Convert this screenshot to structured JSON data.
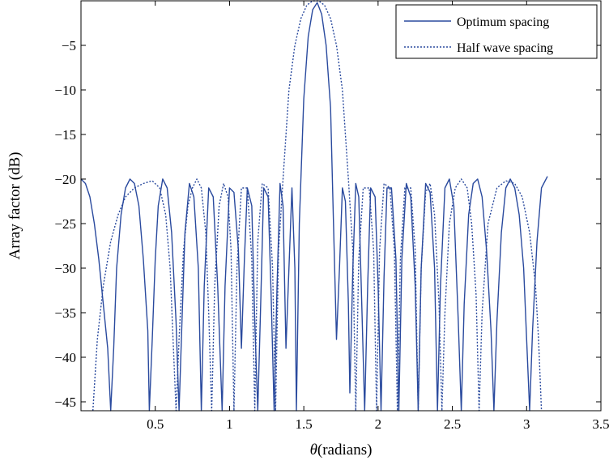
{
  "chart_data": {
    "type": "line",
    "title": "",
    "xlabel": "θ (radians)",
    "xlabel_symbol": "θ",
    "xlabel_unit": "(radians)",
    "ylabel": "Array factor (dB)",
    "xlim": [
      0,
      3.5
    ],
    "ylim": [
      -46,
      0
    ],
    "xticks": [
      0.5,
      1,
      1.5,
      2,
      2.5,
      3,
      3.5
    ],
    "xtick_labels": [
      "0.5",
      "1",
      "1.5",
      "2",
      "2.5",
      "3",
      "3.5"
    ],
    "yticks": [
      -5,
      -10,
      -15,
      -20,
      -25,
      -30,
      -35,
      -40,
      -45
    ],
    "ytick_labels": [
      "−5",
      "−10",
      "−15",
      "−20",
      "−25",
      "−30",
      "−35",
      "−40",
      "−45"
    ],
    "grid": false,
    "legend_position": "top-right",
    "colors": {
      "series": "#2a4a9e",
      "axes": "#000000"
    },
    "series": [
      {
        "name": "Optimum spacing",
        "style": "solid",
        "points": [
          [
            0,
            -20
          ],
          [
            0.03,
            -20.5
          ],
          [
            0.06,
            -22
          ],
          [
            0.09,
            -25
          ],
          [
            0.12,
            -29
          ],
          [
            0.15,
            -34
          ],
          [
            0.18,
            -39
          ],
          [
            0.2,
            -46
          ],
          [
            0.22,
            -39
          ],
          [
            0.24,
            -30
          ],
          [
            0.27,
            -24
          ],
          [
            0.3,
            -21
          ],
          [
            0.33,
            -20
          ],
          [
            0.36,
            -20.5
          ],
          [
            0.39,
            -23
          ],
          [
            0.42,
            -29
          ],
          [
            0.45,
            -37
          ],
          [
            0.46,
            -46
          ],
          [
            0.48,
            -38
          ],
          [
            0.5,
            -29
          ],
          [
            0.52,
            -23
          ],
          [
            0.55,
            -20
          ],
          [
            0.58,
            -21
          ],
          [
            0.61,
            -26
          ],
          [
            0.64,
            -36
          ],
          [
            0.66,
            -46
          ],
          [
            0.68,
            -36
          ],
          [
            0.7,
            -26
          ],
          [
            0.73,
            -20.5
          ],
          [
            0.76,
            -22
          ],
          [
            0.79,
            -30
          ],
          [
            0.81,
            -46
          ],
          [
            0.83,
            -32
          ],
          [
            0.86,
            -21
          ],
          [
            0.89,
            -22
          ],
          [
            0.92,
            -32
          ],
          [
            0.95,
            -46
          ],
          [
            0.97,
            -32
          ],
          [
            1,
            -21
          ],
          [
            1.03,
            -21.5
          ],
          [
            1.06,
            -28
          ],
          [
            1.08,
            -39
          ],
          [
            1.1,
            -29
          ],
          [
            1.12,
            -21
          ],
          [
            1.15,
            -23
          ],
          [
            1.17,
            -36
          ],
          [
            1.19,
            -46
          ],
          [
            1.21,
            -34
          ],
          [
            1.23,
            -21
          ],
          [
            1.26,
            -22
          ],
          [
            1.28,
            -33
          ],
          [
            1.3,
            -46
          ],
          [
            1.32,
            -32
          ],
          [
            1.34,
            -20.5
          ],
          [
            1.36,
            -23
          ],
          [
            1.38,
            -39
          ],
          [
            1.4,
            -30
          ],
          [
            1.42,
            -21
          ],
          [
            1.44,
            -30
          ],
          [
            1.45,
            -46
          ],
          [
            1.47,
            -25
          ],
          [
            1.5,
            -11
          ],
          [
            1.53,
            -4
          ],
          [
            1.56,
            -1
          ],
          [
            1.59,
            -0.2
          ],
          [
            1.62,
            -1.5
          ],
          [
            1.65,
            -5
          ],
          [
            1.68,
            -12
          ],
          [
            1.7,
            -25
          ],
          [
            1.72,
            -38
          ],
          [
            1.74,
            -30
          ],
          [
            1.76,
            -21
          ],
          [
            1.78,
            -22.5
          ],
          [
            1.8,
            -34
          ],
          [
            1.81,
            -44
          ],
          [
            1.83,
            -30
          ],
          [
            1.85,
            -20.5
          ],
          [
            1.87,
            -22
          ],
          [
            1.89,
            -34
          ],
          [
            1.91,
            -46
          ],
          [
            1.93,
            -32
          ],
          [
            1.95,
            -21
          ],
          [
            1.98,
            -22
          ],
          [
            2,
            -32
          ],
          [
            2.02,
            -46
          ],
          [
            2.04,
            -31
          ],
          [
            2.06,
            -21
          ],
          [
            2.09,
            -21
          ],
          [
            2.12,
            -29
          ],
          [
            2.14,
            -46
          ],
          [
            2.16,
            -29
          ],
          [
            2.19,
            -20.5
          ],
          [
            2.22,
            -22
          ],
          [
            2.25,
            -32
          ],
          [
            2.27,
            -46
          ],
          [
            2.29,
            -30
          ],
          [
            2.32,
            -20.5
          ],
          [
            2.35,
            -21.5
          ],
          [
            2.38,
            -30
          ],
          [
            2.4,
            -46
          ],
          [
            2.42,
            -32
          ],
          [
            2.45,
            -21
          ],
          [
            2.48,
            -20
          ],
          [
            2.51,
            -23
          ],
          [
            2.54,
            -36
          ],
          [
            2.56,
            -46
          ],
          [
            2.58,
            -34
          ],
          [
            2.61,
            -24
          ],
          [
            2.64,
            -20.5
          ],
          [
            2.67,
            -20
          ],
          [
            2.7,
            -22
          ],
          [
            2.73,
            -28
          ],
          [
            2.76,
            -37
          ],
          [
            2.78,
            -46
          ],
          [
            2.8,
            -36
          ],
          [
            2.83,
            -26
          ],
          [
            2.86,
            -21
          ],
          [
            2.89,
            -20
          ],
          [
            2.92,
            -21
          ],
          [
            2.95,
            -24
          ],
          [
            2.98,
            -30
          ],
          [
            3,
            -38
          ],
          [
            3.02,
            -46
          ],
          [
            3.04,
            -37
          ],
          [
            3.07,
            -27
          ],
          [
            3.1,
            -21
          ],
          [
            3.14,
            -19.7
          ]
        ]
      },
      {
        "name": "Half wave spacing",
        "style": "dotted",
        "points": [
          [
            0.08,
            -46
          ],
          [
            0.11,
            -38
          ],
          [
            0.15,
            -32
          ],
          [
            0.2,
            -27
          ],
          [
            0.25,
            -24
          ],
          [
            0.3,
            -22
          ],
          [
            0.36,
            -21
          ],
          [
            0.42,
            -20.5
          ],
          [
            0.48,
            -20.2
          ],
          [
            0.53,
            -21
          ],
          [
            0.57,
            -24
          ],
          [
            0.6,
            -30
          ],
          [
            0.62,
            -38
          ],
          [
            0.64,
            -46
          ],
          [
            0.66,
            -38
          ],
          [
            0.69,
            -28
          ],
          [
            0.72,
            -23
          ],
          [
            0.75,
            -21
          ],
          [
            0.78,
            -20
          ],
          [
            0.81,
            -21
          ],
          [
            0.84,
            -26
          ],
          [
            0.86,
            -35
          ],
          [
            0.88,
            -46
          ],
          [
            0.9,
            -32
          ],
          [
            0.93,
            -23
          ],
          [
            0.96,
            -20.5
          ],
          [
            0.99,
            -22
          ],
          [
            1.01,
            -28
          ],
          [
            1.03,
            -46
          ],
          [
            1.05,
            -30
          ],
          [
            1.08,
            -21
          ],
          [
            1.12,
            -21
          ],
          [
            1.15,
            -29
          ],
          [
            1.17,
            -46
          ],
          [
            1.19,
            -27
          ],
          [
            1.22,
            -20.5
          ],
          [
            1.26,
            -21
          ],
          [
            1.29,
            -30
          ],
          [
            1.31,
            -46
          ],
          [
            1.33,
            -28
          ],
          [
            1.36,
            -20
          ],
          [
            1.4,
            -10
          ],
          [
            1.44,
            -5
          ],
          [
            1.48,
            -2
          ],
          [
            1.52,
            -0.5
          ],
          [
            1.56,
            0
          ],
          [
            1.6,
            0
          ],
          [
            1.64,
            -0.5
          ],
          [
            1.68,
            -2
          ],
          [
            1.72,
            -5
          ],
          [
            1.76,
            -10
          ],
          [
            1.8,
            -20
          ],
          [
            1.83,
            -28
          ],
          [
            1.85,
            -46
          ],
          [
            1.87,
            -29
          ],
          [
            1.9,
            -21
          ],
          [
            1.94,
            -21
          ],
          [
            1.97,
            -28
          ],
          [
            1.99,
            -46
          ],
          [
            2.01,
            -28
          ],
          [
            2.04,
            -20.5
          ],
          [
            2.08,
            -21
          ],
          [
            2.11,
            -28
          ],
          [
            2.13,
            -46
          ],
          [
            2.15,
            -29
          ],
          [
            2.18,
            -21
          ],
          [
            2.22,
            -21
          ],
          [
            2.25,
            -28
          ],
          [
            2.27,
            -46
          ],
          [
            2.29,
            -30
          ],
          [
            2.32,
            -21.5
          ],
          [
            2.35,
            -20.5
          ],
          [
            2.38,
            -24
          ],
          [
            2.41,
            -34
          ],
          [
            2.43,
            -46
          ],
          [
            2.45,
            -35
          ],
          [
            2.48,
            -25
          ],
          [
            2.52,
            -21
          ],
          [
            2.56,
            -20
          ],
          [
            2.6,
            -21
          ],
          [
            2.63,
            -25
          ],
          [
            2.66,
            -33
          ],
          [
            2.68,
            -46
          ],
          [
            2.7,
            -35
          ],
          [
            2.74,
            -25
          ],
          [
            2.8,
            -21
          ],
          [
            2.86,
            -20.2
          ],
          [
            2.92,
            -20.5
          ],
          [
            2.97,
            -22
          ],
          [
            3.02,
            -26
          ],
          [
            3.06,
            -32
          ],
          [
            3.08,
            -38
          ],
          [
            3.1,
            -46
          ]
        ]
      }
    ]
  }
}
